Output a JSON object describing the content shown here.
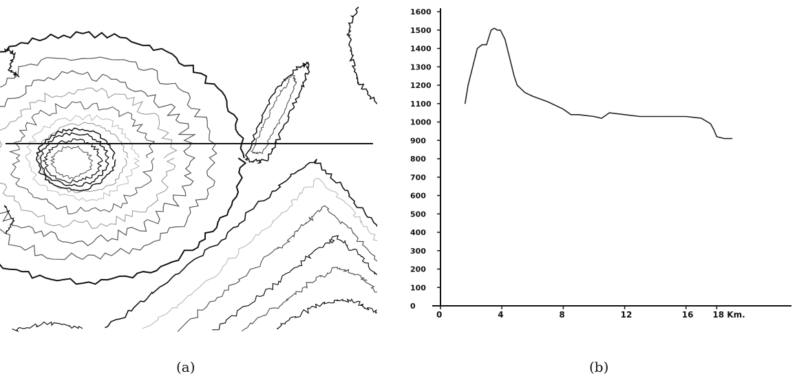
{
  "captions": {
    "a": "(a)",
    "b": "(b)"
  },
  "colors": {
    "ink": "#111111",
    "mid": "#555555",
    "light": "#9a9a9a",
    "pale": "#bdbdbd"
  },
  "chart_data": [
    {
      "panel": "a",
      "type": "contour-map",
      "contours": "topographic contour lines of a volcano cone with summit caldera, an elongated ridge, and terrain rising to the lower right; a straight horizontal profile line crosses the map",
      "profile_line": "horizontal"
    },
    {
      "panel": "b",
      "type": "line",
      "title": "",
      "xlabel": "",
      "ylabel": "",
      "xlim": [
        0,
        20
      ],
      "ylim": [
        0,
        1600
      ],
      "x_ticks": [
        0,
        4,
        8,
        12,
        16,
        18
      ],
      "x_tick_labels": [
        "0",
        "4",
        "8",
        "12",
        "16",
        "18 Km."
      ],
      "y_ticks": [
        0,
        100,
        200,
        300,
        400,
        500,
        600,
        700,
        800,
        900,
        1000,
        1100,
        1200,
        1300,
        1400,
        1500,
        1600
      ],
      "y_tick_labels": [
        "0",
        "100",
        "200",
        "300",
        "400",
        "500",
        "600",
        "700",
        "800",
        "900",
        "1000",
        "1100",
        "1200",
        "1300",
        "1400",
        "1500",
        "1600"
      ],
      "grid": false,
      "series": [
        {
          "x": [
            1.6,
            1.8,
            2.1,
            2.4,
            2.7,
            3.0,
            3.3,
            3.5,
            3.7,
            3.9,
            4.2,
            4.5,
            4.8,
            5.0,
            5.5,
            6.0,
            7.0,
            8.0,
            8.5,
            9.0,
            10.0,
            10.5,
            11.0,
            12.0,
            13.0,
            14.0,
            15.0,
            16.0,
            17.0,
            17.6,
            17.8,
            18.0,
            18.5,
            19.0
          ],
          "y": [
            1100,
            1200,
            1300,
            1400,
            1420,
            1420,
            1500,
            1510,
            1500,
            1500,
            1450,
            1350,
            1250,
            1200,
            1160,
            1140,
            1110,
            1070,
            1040,
            1040,
            1030,
            1020,
            1050,
            1040,
            1030,
            1030,
            1030,
            1030,
            1020,
            990,
            960,
            920,
            910,
            910
          ]
        }
      ]
    }
  ]
}
